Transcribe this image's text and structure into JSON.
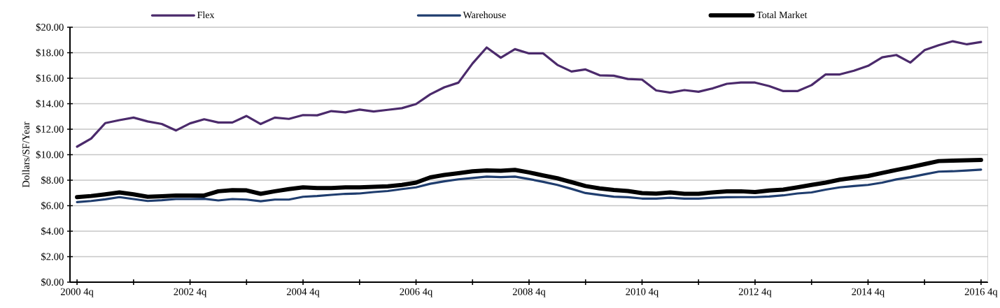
{
  "chart_data": {
    "type": "line",
    "ylabel": "Dollars/SF/Year",
    "categories": [
      "2000 4q",
      null,
      null,
      null,
      null,
      null,
      null,
      null,
      "2002 4q",
      null,
      null,
      null,
      null,
      null,
      null,
      null,
      "2004 4q",
      null,
      null,
      null,
      null,
      null,
      null,
      null,
      "2006 4q",
      null,
      null,
      null,
      null,
      null,
      null,
      null,
      "2008 4q",
      null,
      null,
      null,
      null,
      null,
      null,
      null,
      "2010 4q",
      null,
      null,
      null,
      null,
      null,
      null,
      null,
      "2012 4q",
      null,
      null,
      null,
      null,
      null,
      null,
      null,
      "2014 4q",
      null,
      null,
      null,
      null,
      null,
      null,
      null,
      "2016 4q"
    ],
    "series": [
      {
        "name": "Flex",
        "color": "#4b2a6b",
        "values": [
          10.63,
          11.27,
          12.48,
          12.71,
          12.91,
          12.61,
          12.41,
          11.9,
          12.46,
          12.78,
          12.53,
          12.53,
          13.04,
          12.41,
          12.91,
          12.81,
          13.11,
          13.09,
          13.42,
          13.32,
          13.54,
          13.39,
          13.52,
          13.65,
          13.97,
          14.73,
          15.29,
          15.65,
          17.16,
          18.41,
          17.61,
          18.28,
          17.95,
          17.95,
          17.05,
          16.53,
          16.69,
          16.23,
          16.2,
          15.94,
          15.89,
          15.04,
          14.87,
          15.07,
          14.94,
          15.2,
          15.56,
          15.66,
          15.66,
          15.38,
          14.99,
          14.99,
          15.46,
          16.3,
          16.3,
          16.59,
          16.97,
          17.64,
          17.82,
          17.23,
          18.2,
          18.59,
          18.9,
          18.66,
          18.84
        ]
      },
      {
        "name": "Warehouse",
        "color": "#1f3d6e",
        "values": [
          6.28,
          6.37,
          6.5,
          6.67,
          6.52,
          6.37,
          6.43,
          6.52,
          6.52,
          6.54,
          6.41,
          6.52,
          6.48,
          6.35,
          6.48,
          6.48,
          6.7,
          6.76,
          6.85,
          6.93,
          6.96,
          7.07,
          7.15,
          7.3,
          7.44,
          7.72,
          7.91,
          8.07,
          8.17,
          8.28,
          8.24,
          8.28,
          8.09,
          7.87,
          7.63,
          7.32,
          6.99,
          6.84,
          6.71,
          6.66,
          6.56,
          6.56,
          6.62,
          6.56,
          6.56,
          6.62,
          6.66,
          6.67,
          6.67,
          6.72,
          6.81,
          6.96,
          7.04,
          7.26,
          7.44,
          7.54,
          7.63,
          7.81,
          8.06,
          8.24,
          8.46,
          8.67,
          8.7,
          8.76,
          8.83
        ]
      },
      {
        "name": "Total Market",
        "color": "#000000",
        "values": [
          6.67,
          6.76,
          6.89,
          7.04,
          6.89,
          6.7,
          6.74,
          6.8,
          6.8,
          6.8,
          7.13,
          7.22,
          7.2,
          6.93,
          7.13,
          7.3,
          7.44,
          7.39,
          7.39,
          7.44,
          7.44,
          7.48,
          7.52,
          7.63,
          7.81,
          8.22,
          8.41,
          8.55,
          8.7,
          8.77,
          8.74,
          8.81,
          8.61,
          8.37,
          8.15,
          7.85,
          7.54,
          7.36,
          7.23,
          7.15,
          6.99,
          6.95,
          7.04,
          6.93,
          6.93,
          7.04,
          7.12,
          7.13,
          7.07,
          7.19,
          7.26,
          7.44,
          7.63,
          7.81,
          8.04,
          8.19,
          8.33,
          8.57,
          8.8,
          9.02,
          9.26,
          9.5,
          9.54,
          9.56,
          9.59
        ]
      }
    ],
    "ylim": [
      0,
      20
    ],
    "yticks": [
      {
        "value": 0,
        "label": "$0.00"
      },
      {
        "value": 2,
        "label": "$2.00"
      },
      {
        "value": 4,
        "label": "$4.00"
      },
      {
        "value": 6,
        "label": "$6.00"
      },
      {
        "value": 8,
        "label": "$8.00"
      },
      {
        "value": 10,
        "label": "$10.00"
      },
      {
        "value": 12,
        "label": "$12.00"
      },
      {
        "value": 14,
        "label": "$14.00"
      },
      {
        "value": 16,
        "label": "$16.00"
      },
      {
        "value": 18,
        "label": "$18.00"
      },
      {
        "value": 20,
        "label": "$20.00"
      }
    ],
    "grid": "y",
    "legend": "top",
    "marker": "none",
    "line_style": "solid"
  }
}
